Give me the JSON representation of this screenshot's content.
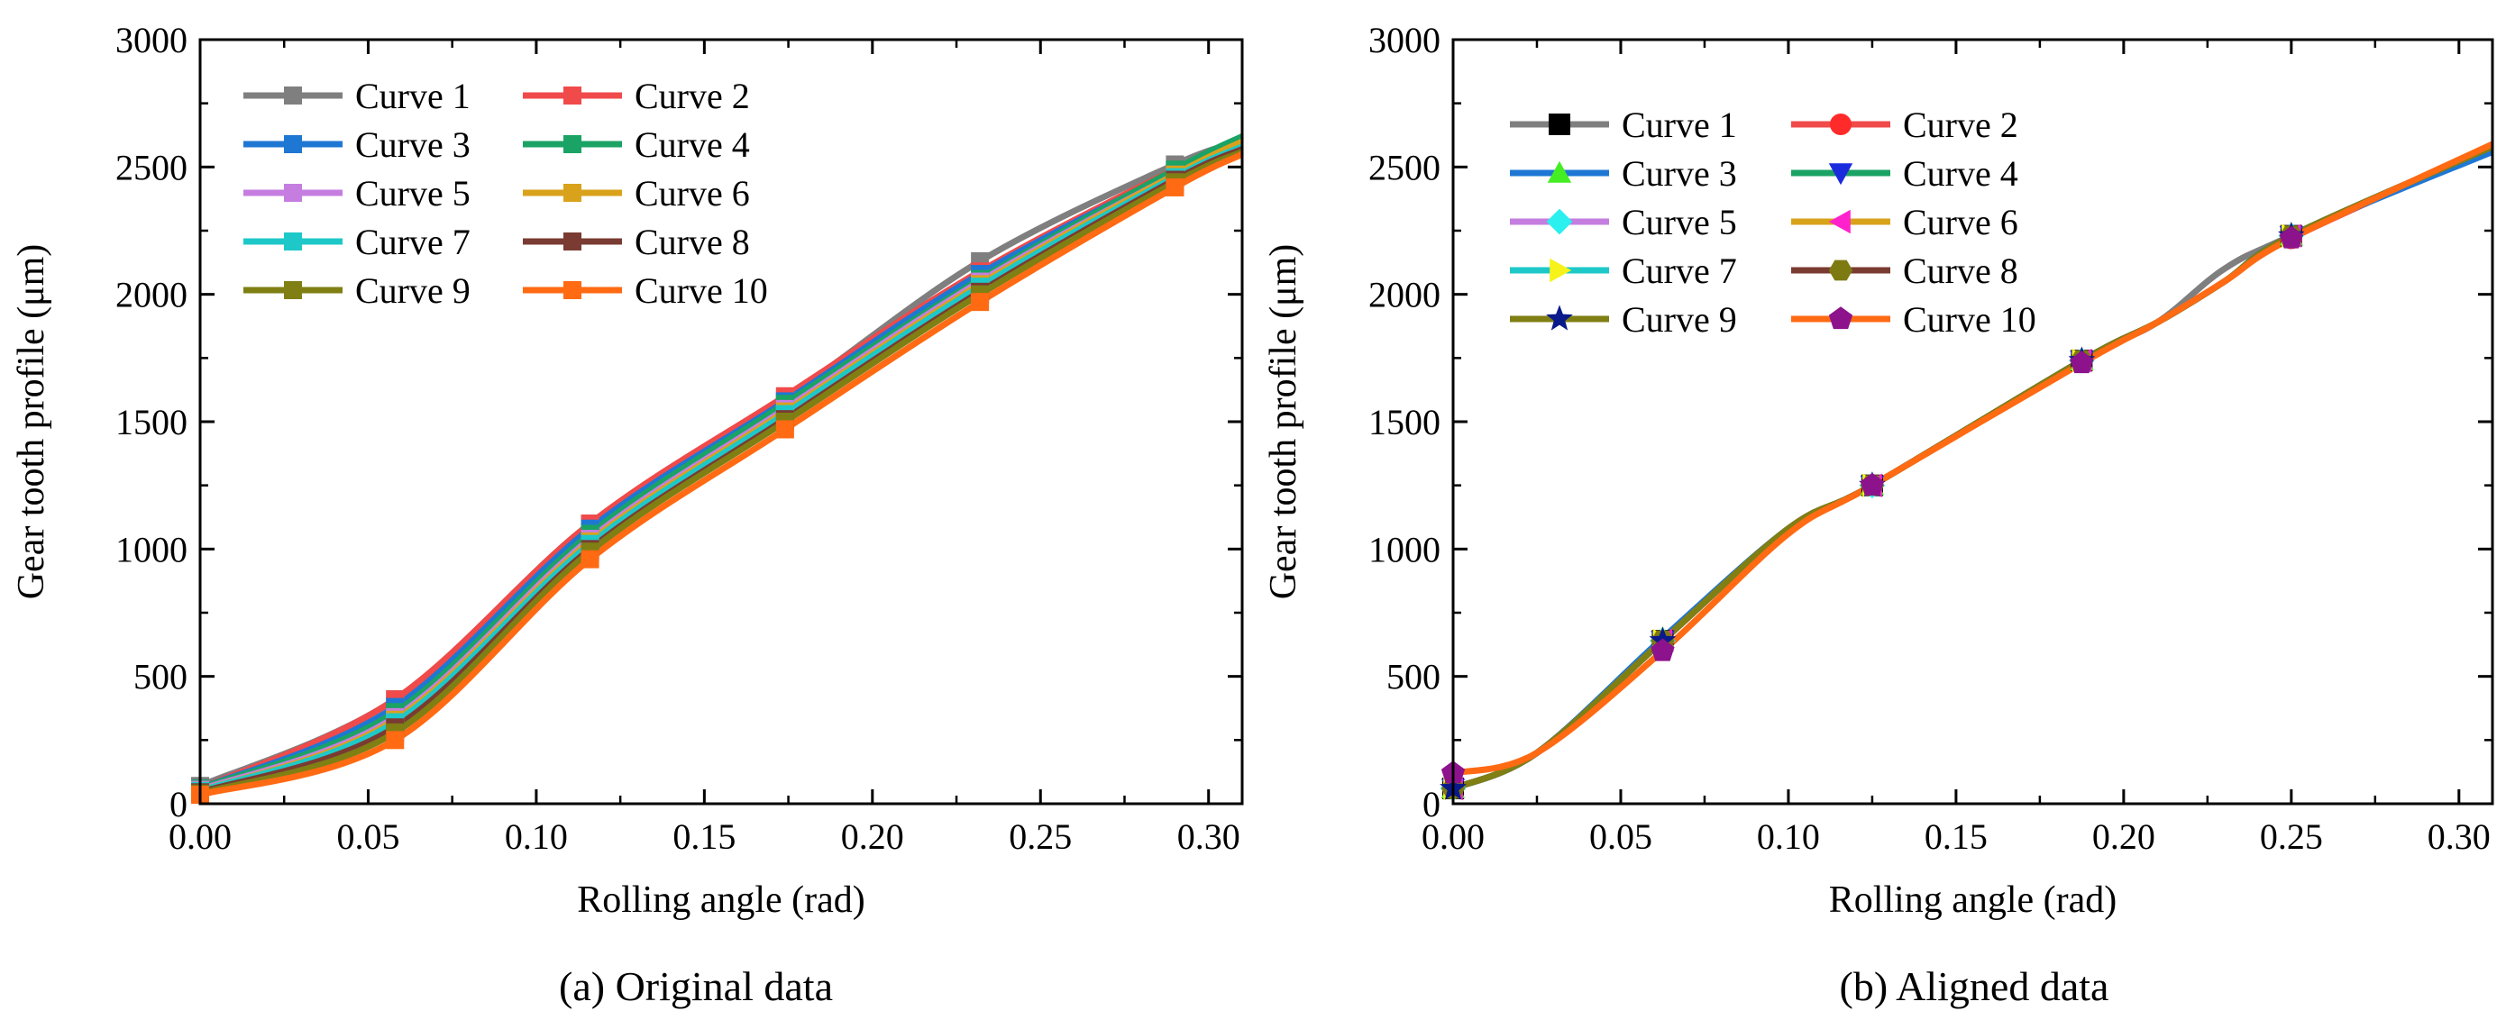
{
  "chart_data": [
    {
      "type": "line",
      "caption": "(a) Original data",
      "xlabel": "Rolling angle (rad)",
      "ylabel": "Gear tooth profile (μm)",
      "xlim": [
        0.0,
        0.31
      ],
      "ylim": [
        0,
        3000
      ],
      "xticks": [
        "0.00",
        "0.05",
        "0.10",
        "0.15",
        "0.20",
        "0.25",
        "0.30"
      ],
      "yticks": [
        "0",
        "500",
        "1000",
        "1500",
        "2000",
        "2500",
        "3000"
      ],
      "legend_position": "top-left",
      "legend_columns": 2,
      "marker": "square",
      "grid": false,
      "series": [
        {
          "name": "Curve 1",
          "color": "#7f7f7f",
          "x": [
            0.0,
            0.058,
            0.116,
            0.174,
            0.232,
            0.29,
            0.31
          ],
          "y": [
            70,
            410,
            1100,
            1590,
            2130,
            2510,
            2600
          ]
        },
        {
          "name": "Curve 2",
          "color": "#f04a4a",
          "x": [
            0.0,
            0.058,
            0.116,
            0.174,
            0.232,
            0.29,
            0.31
          ],
          "y": [
            60,
            410,
            1100,
            1600,
            2090,
            2490,
            2590
          ]
        },
        {
          "name": "Curve 3",
          "color": "#1f77d4",
          "x": [
            0.0,
            0.058,
            0.116,
            0.174,
            0.232,
            0.29,
            0.31
          ],
          "y": [
            60,
            380,
            1080,
            1580,
            2080,
            2480,
            2590
          ]
        },
        {
          "name": "Curve 4",
          "color": "#1aa364",
          "x": [
            0.0,
            0.058,
            0.116,
            0.174,
            0.232,
            0.29,
            0.31
          ],
          "y": [
            60,
            360,
            1060,
            1570,
            2060,
            2490,
            2620
          ]
        },
        {
          "name": "Curve 5",
          "color": "#c57ee0",
          "x": [
            0.0,
            0.058,
            0.116,
            0.174,
            0.232,
            0.29,
            0.31
          ],
          "y": [
            55,
            340,
            1040,
            1550,
            2050,
            2470,
            2590
          ]
        },
        {
          "name": "Curve 6",
          "color": "#d9a21b",
          "x": [
            0.0,
            0.058,
            0.116,
            0.174,
            0.232,
            0.29,
            0.31
          ],
          "y": [
            50,
            330,
            1030,
            1540,
            2040,
            2470,
            2600
          ]
        },
        {
          "name": "Curve 7",
          "color": "#1ec8c8",
          "x": [
            0.0,
            0.058,
            0.116,
            0.174,
            0.232,
            0.29,
            0.31
          ],
          "y": [
            50,
            320,
            1020,
            1530,
            2030,
            2460,
            2580
          ]
        },
        {
          "name": "Curve 8",
          "color": "#7a3b32",
          "x": [
            0.0,
            0.058,
            0.116,
            0.174,
            0.232,
            0.29,
            0.31
          ],
          "y": [
            45,
            300,
            1000,
            1510,
            2010,
            2450,
            2570
          ]
        },
        {
          "name": "Curve 9",
          "color": "#7f7f14",
          "x": [
            0.0,
            0.058,
            0.116,
            0.174,
            0.232,
            0.29,
            0.31
          ],
          "y": [
            40,
            280,
            990,
            1500,
            2000,
            2440,
            2560
          ]
        },
        {
          "name": "Curve 10",
          "color": "#ff6a13",
          "x": [
            0.0,
            0.058,
            0.116,
            0.174,
            0.232,
            0.29,
            0.31
          ],
          "y": [
            35,
            250,
            960,
            1470,
            1970,
            2420,
            2550
          ]
        }
      ]
    },
    {
      "type": "line",
      "caption": "(b) Aligned data",
      "xlabel": "Rolling angle (rad)",
      "ylabel": "Gear tooth profile (μm)",
      "xlim": [
        0.0,
        0.31
      ],
      "ylim": [
        0,
        3000
      ],
      "xticks": [
        "0.00",
        "0.05",
        "0.10",
        "0.15",
        "0.20",
        "0.25",
        "0.30"
      ],
      "yticks": [
        "0",
        "500",
        "1000",
        "1500",
        "2000",
        "2500",
        "3000"
      ],
      "legend_position": "top-left",
      "legend_columns": 2,
      "grid": false,
      "series": [
        {
          "name": "Curve 1",
          "color": "#7f7f7f",
          "marker_color": "#000000",
          "marker": "square",
          "x": [
            0.0,
            0.025,
            0.0625,
            0.1,
            0.125,
            0.1875,
            0.21,
            0.23,
            0.25,
            0.31
          ],
          "y": [
            60,
            200,
            640,
            1080,
            1250,
            1740,
            1890,
            2100,
            2230,
            2580
          ]
        },
        {
          "name": "Curve 2",
          "color": "#f04a4a",
          "marker_color": "#ff2a2a",
          "marker": "circle",
          "x": [
            0.0,
            0.025,
            0.0625,
            0.1,
            0.125,
            0.1875,
            0.21,
            0.23,
            0.25,
            0.31
          ],
          "y": [
            60,
            200,
            640,
            1080,
            1250,
            1740,
            1890,
            2050,
            2220,
            2580
          ]
        },
        {
          "name": "Curve 3",
          "color": "#1f77d4",
          "marker_color": "#44ee22",
          "marker": "triangle-up",
          "x": [
            0.0,
            0.025,
            0.0625,
            0.1,
            0.125,
            0.1875,
            0.21,
            0.23,
            0.25,
            0.31
          ],
          "y": [
            60,
            200,
            650,
            1080,
            1250,
            1740,
            1890,
            2050,
            2230,
            2560
          ]
        },
        {
          "name": "Curve 4",
          "color": "#1aa364",
          "marker_color": "#1a2bdd",
          "marker": "triangle-down",
          "x": [
            0.0,
            0.025,
            0.0625,
            0.1,
            0.125,
            0.1875,
            0.21,
            0.23,
            0.25,
            0.31
          ],
          "y": [
            60,
            200,
            640,
            1080,
            1250,
            1740,
            1890,
            2050,
            2230,
            2580
          ]
        },
        {
          "name": "Curve 5",
          "color": "#c57ee0",
          "marker_color": "#2af0f0",
          "marker": "diamond",
          "x": [
            0.0,
            0.025,
            0.0625,
            0.1,
            0.125,
            0.1875,
            0.21,
            0.23,
            0.25,
            0.31
          ],
          "y": [
            60,
            200,
            640,
            1080,
            1250,
            1740,
            1890,
            2050,
            2230,
            2580
          ]
        },
        {
          "name": "Curve 6",
          "color": "#d9a21b",
          "marker_color": "#ff22cc",
          "marker": "triangle-left",
          "x": [
            0.0,
            0.025,
            0.0625,
            0.1,
            0.125,
            0.1875,
            0.21,
            0.23,
            0.25,
            0.31
          ],
          "y": [
            60,
            200,
            640,
            1080,
            1250,
            1740,
            1890,
            2050,
            2230,
            2580
          ]
        },
        {
          "name": "Curve 7",
          "color": "#1ec8c8",
          "marker_color": "#f7f21a",
          "marker": "triangle-right",
          "x": [
            0.0,
            0.025,
            0.0625,
            0.1,
            0.125,
            0.1875,
            0.21,
            0.23,
            0.25,
            0.31
          ],
          "y": [
            60,
            200,
            640,
            1080,
            1250,
            1740,
            1890,
            2050,
            2230,
            2580
          ]
        },
        {
          "name": "Curve 8",
          "color": "#7a3b32",
          "marker_color": "#7d7a12",
          "marker": "hexagon",
          "x": [
            0.0,
            0.025,
            0.0625,
            0.1,
            0.125,
            0.1875,
            0.21,
            0.23,
            0.25,
            0.31
          ],
          "y": [
            60,
            200,
            640,
            1080,
            1250,
            1740,
            1890,
            2050,
            2230,
            2580
          ]
        },
        {
          "name": "Curve 9",
          "color": "#7f7f14",
          "marker_color": "#0a1a8a",
          "marker": "star",
          "x": [
            0.0,
            0.025,
            0.0625,
            0.1,
            0.125,
            0.1875,
            0.21,
            0.23,
            0.25,
            0.31
          ],
          "y": [
            60,
            200,
            640,
            1080,
            1250,
            1740,
            1890,
            2050,
            2230,
            2580
          ]
        },
        {
          "name": "Curve 10",
          "color": "#ff6a13",
          "marker_color": "#8c138c",
          "marker": "pentagon",
          "x": [
            0.0,
            0.025,
            0.0625,
            0.1,
            0.125,
            0.1875,
            0.21,
            0.23,
            0.25,
            0.31
          ],
          "y": [
            120,
            200,
            600,
            1060,
            1250,
            1730,
            1890,
            2050,
            2220,
            2590
          ]
        }
      ]
    }
  ]
}
